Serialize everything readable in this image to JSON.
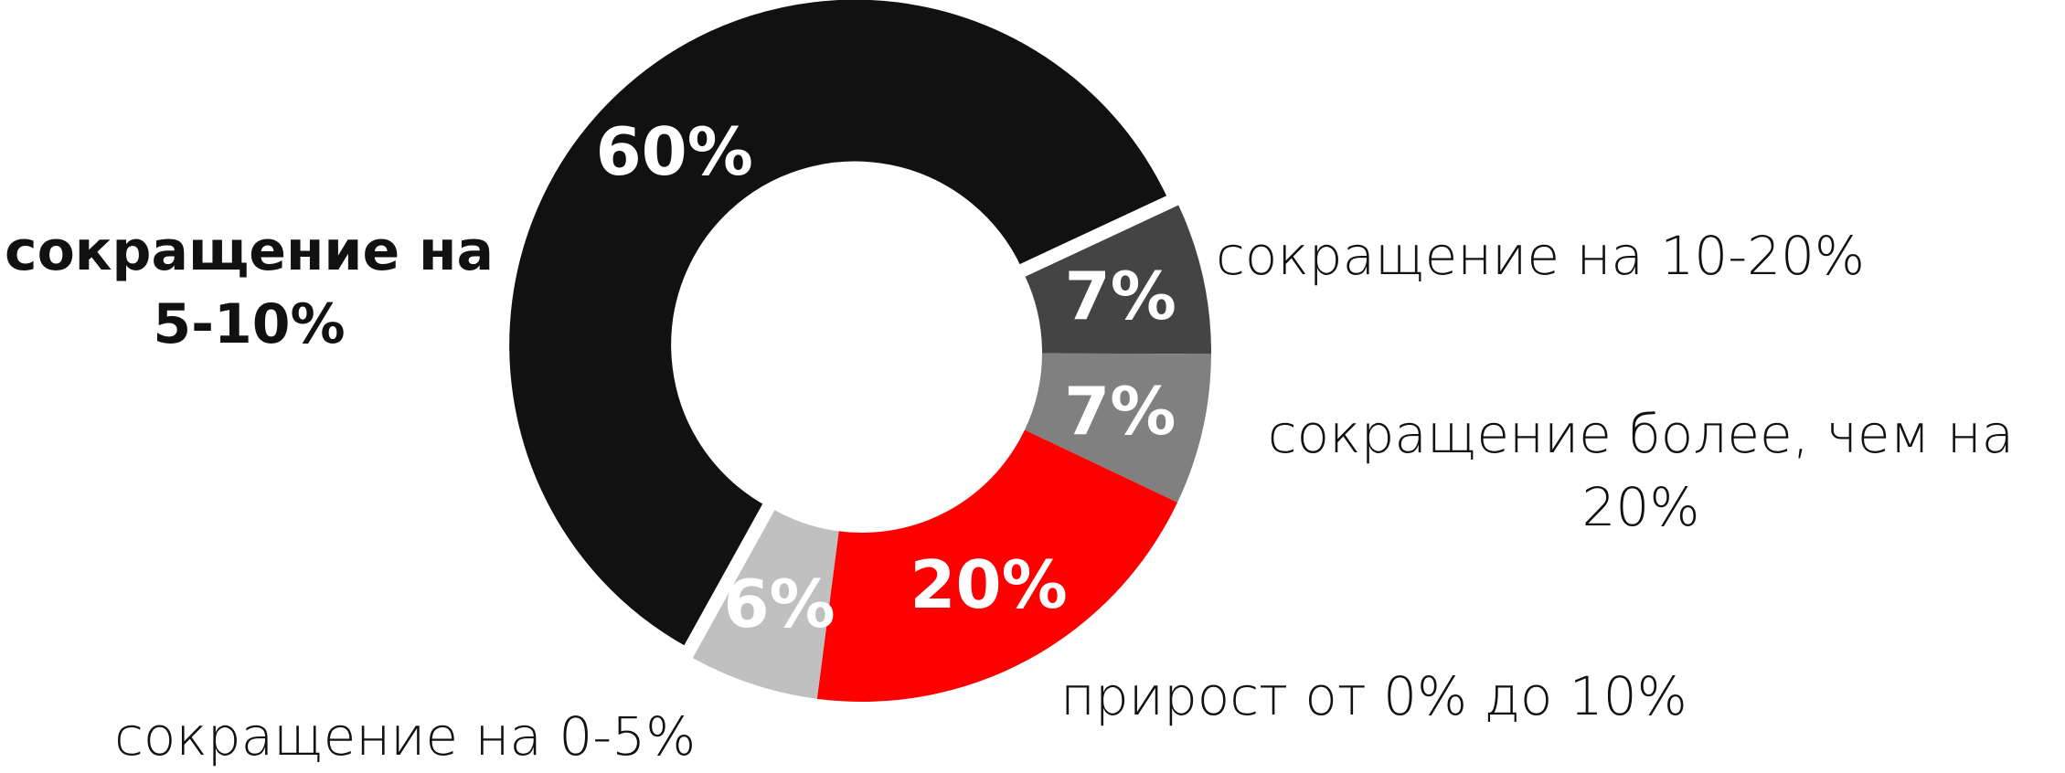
{
  "chart_data": {
    "type": "donut",
    "categories": [
      "сокращение на 5-10%",
      "сокращение на 10-20%",
      "сокращение более, чем на 20%",
      "прирост от 0% до 10%",
      "сокращение на 0-5%"
    ],
    "values": [
      60,
      7,
      7,
      20,
      6
    ],
    "value_labels": [
      "60%",
      "7%",
      "7%",
      "20%",
      "6%"
    ],
    "colors": [
      "#111111",
      "#444444",
      "#808080",
      "#ff0000",
      "#c0c0c0"
    ],
    "startangle": 209,
    "explode": [
      0.03,
      0,
      0,
      0,
      0
    ]
  }
}
